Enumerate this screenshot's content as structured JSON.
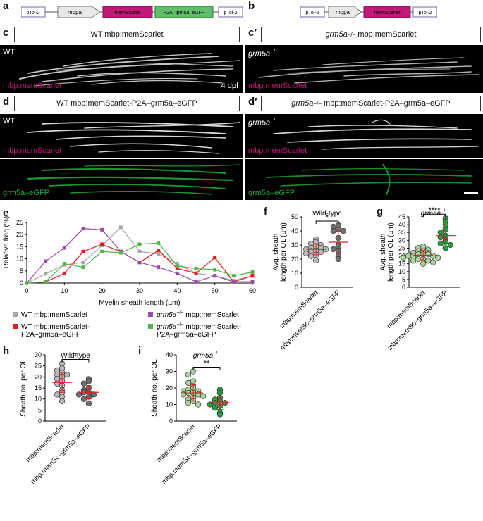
{
  "panel_letters": {
    "a": "a",
    "b": "b",
    "c": "c",
    "c2": "c′",
    "d": "d",
    "d2": "d′",
    "e": "e",
    "f": "f",
    "g": "g",
    "h": "h",
    "i": "i"
  },
  "construct_a": [
    "pTol-2",
    "mbpa",
    "memScarlet",
    "P2A–grm5a–eGFP",
    "pTol-2"
  ],
  "construct_b": [
    "pTol-2",
    "mbpa",
    "memScarlet",
    "pTol-2"
  ],
  "headers": {
    "c_prefix": "WT mbp:memScarlet",
    "c_italic": "",
    "c_suffix": "",
    "c2_italic": "grm5a",
    "c2_sup": "−/−",
    "c2_suffix": " mbp:memScarlet",
    "d_prefix": "WT mbp:memScarlet-P2A–grm5a–eGFP",
    "d2_italic": "grm5a",
    "d2_sup": "−/−",
    "d2_suffix": " mbp:memScarlet-P2A–grm5a–eGFP"
  },
  "micro_labels": {
    "wt": "WT",
    "grm_it": "grm5a",
    "grm_sup": "−/−",
    "memscarlet": "mbp:memScarlet",
    "dpf": "4 dpf",
    "egfp": "grm5a–eGFP"
  },
  "colors": {
    "magenta": "#c2187a",
    "green": "#23a847",
    "gray": "#a6a6a6",
    "red": "#e31d1d",
    "purple": "#9b4aa6",
    "lgreen": "#4fb64b",
    "light_gray_dot": "#b9b9b9",
    "dark_gray_dot": "#6e6e6e",
    "light_green_dot": "#a9d69c",
    "dark_green_dot": "#2e9a3f"
  },
  "chart_data": [
    {
      "panel": "e",
      "type": "line",
      "xlabel": "Myelin sheath length (µm)",
      "ylabel": "Relative freq (%)",
      "xlim": [
        0,
        60
      ],
      "ylim": [
        0,
        25
      ],
      "xticks": [
        0,
        10,
        20,
        30,
        40,
        50,
        60
      ],
      "yticks": [
        0,
        5,
        10,
        15,
        20,
        25
      ],
      "x": [
        0,
        5,
        10,
        15,
        20,
        25,
        30,
        35,
        40,
        45,
        50,
        55,
        60
      ],
      "series": [
        {
          "name": "WT mbp:memScarlet",
          "color": "#a6a6a6",
          "marker": "square",
          "values": [
            0,
            3.8,
            7.5,
            8.5,
            15.5,
            23,
            13,
            12,
            8,
            4,
            3,
            1,
            3
          ]
        },
        {
          "name": "WT mbp:memScarlet-P2A–grm5a–eGFP",
          "color": "#e31d1d",
          "marker": "square",
          "values": [
            0,
            0.5,
            4,
            13,
            16,
            13,
            8.5,
            13.5,
            6,
            4,
            10.5,
            0.5,
            3
          ]
        },
        {
          "name": "grm5a−/− mbp:memScarlet",
          "color": "#9b4aa6",
          "marker": "square",
          "values": [
            0,
            9,
            14.5,
            22.5,
            22,
            13,
            8.5,
            6.5,
            4,
            0.5,
            3,
            0.5,
            0.5
          ]
        },
        {
          "name": "grm5a−/− mbp:memScarlet-P2A–grm5a–eGFP",
          "color": "#4fb64b",
          "marker": "square",
          "values": [
            0,
            0.5,
            8,
            6.5,
            13,
            12.5,
            16,
            16.5,
            7,
            6,
            5.5,
            3,
            4.5
          ]
        }
      ],
      "legend": [
        {
          "prefix": "WT mbp:memScarlet",
          "italic": "",
          "sup": "",
          "line2": "",
          "color": "#a6a6a6"
        },
        {
          "prefix": "",
          "italic": "grm5a",
          "sup": "−/−",
          "suffix": " mbp:memScarlet",
          "line2": "",
          "color": "#9b4aa6"
        },
        {
          "prefix": "WT mbp:memScarlet-",
          "italic": "",
          "sup": "",
          "line2": "P2A–grm5a–eGFP",
          "color": "#e31d1d"
        },
        {
          "prefix": "",
          "italic": "grm5a",
          "sup": "−/−",
          "suffix": " mbp:memScarlet-",
          "line2": "P2A–grm5a–eGFP",
          "color": "#4fb64b"
        }
      ]
    },
    {
      "panel": "f",
      "type": "scatter",
      "title": "Wild-type",
      "title_italic": false,
      "ylabel_lines": [
        "Avg. sheath",
        "length per OL (µm)"
      ],
      "ylim": [
        0,
        50
      ],
      "yticks": [
        0,
        10,
        20,
        30,
        40,
        50
      ],
      "categories": [
        "mbp:memScarlet",
        "mbp:memSc–grm5a–eGFP"
      ],
      "significance": "*",
      "groups": [
        {
          "values": [
            34,
            32,
            31,
            30,
            29,
            28,
            28,
            27,
            27,
            26,
            26,
            25,
            24,
            23,
            22,
            19
          ],
          "mean": 27,
          "sd": 4,
          "fill": "#b9b9b9"
        },
        {
          "values": [
            44,
            43,
            41,
            40,
            40,
            35,
            30,
            29,
            27,
            26,
            22,
            20
          ],
          "mean": 32,
          "sd": 8,
          "fill": "#6e6e6e"
        }
      ]
    },
    {
      "panel": "g",
      "type": "scatter",
      "title": "grm5a",
      "title_sup": "−/−",
      "title_italic": true,
      "ylabel_lines": [
        "Avg. sheath",
        "length per OL (µm)"
      ],
      "ylim": [
        0,
        45
      ],
      "yticks": [
        0,
        5,
        10,
        15,
        20,
        25,
        30,
        35,
        40,
        45
      ],
      "categories": [
        "mbp:memScarlet",
        "mbp:memSc–grm5a–eGFP"
      ],
      "significance": "****",
      "groups": [
        {
          "values": [
            26,
            25,
            24,
            23,
            23,
            22,
            22,
            21,
            21,
            21,
            20,
            20,
            20,
            19,
            19,
            18,
            18,
            17,
            17,
            16,
            15
          ],
          "mean": 20.5,
          "sd": 3,
          "fill": "#a9d69c"
        },
        {
          "values": [
            44,
            42,
            40,
            37,
            35,
            33,
            32,
            30,
            29,
            28,
            27,
            25
          ],
          "mean": 33,
          "sd": 5,
          "fill": "#2e9a3f"
        }
      ]
    },
    {
      "panel": "h",
      "type": "scatter",
      "title": "Wild-type",
      "title_italic": false,
      "ylabel_lines": [
        "Sheath no. per OL"
      ],
      "ylim": [
        0,
        30
      ],
      "yticks": [
        0,
        5,
        10,
        15,
        20,
        25,
        30
      ],
      "categories": [
        "mbp:memScarlet",
        "mbp:memSc–grm5a–eGFP"
      ],
      "significance": "*",
      "groups": [
        {
          "values": [
            26,
            24,
            23,
            22,
            21,
            21,
            20,
            19,
            18,
            17,
            16,
            14,
            13,
            12,
            11,
            9
          ],
          "mean": 17.5,
          "sd": 4.5,
          "fill": "#b9b9b9"
        },
        {
          "values": [
            19,
            18,
            17,
            15,
            14,
            13,
            13,
            12,
            12,
            11,
            10,
            8
          ],
          "mean": 13,
          "sd": 3,
          "fill": "#6e6e6e"
        }
      ]
    },
    {
      "panel": "i",
      "type": "scatter",
      "title": "grm5a",
      "title_sup": "−/−",
      "title_italic": true,
      "ylabel_lines": [
        "Sheath no. per OL"
      ],
      "ylim": [
        0,
        40
      ],
      "yticks": [
        0,
        10,
        20,
        30,
        40
      ],
      "categories": [
        "mbp:memScarlet",
        "mbp:memSc–grm5a–eGFP"
      ],
      "significance": "**",
      "groups": [
        {
          "values": [
            30,
            28,
            24,
            23,
            21,
            20,
            19,
            18,
            18,
            17,
            17,
            16,
            16,
            15,
            14,
            13,
            12,
            11,
            10
          ],
          "mean": 17,
          "sd": 5,
          "fill": "#a9d69c"
        },
        {
          "values": [
            19,
            17,
            14,
            13,
            12,
            11,
            11,
            10,
            9,
            8,
            5,
            4
          ],
          "mean": 11,
          "sd": 4,
          "fill": "#2e9a3f"
        }
      ]
    }
  ]
}
